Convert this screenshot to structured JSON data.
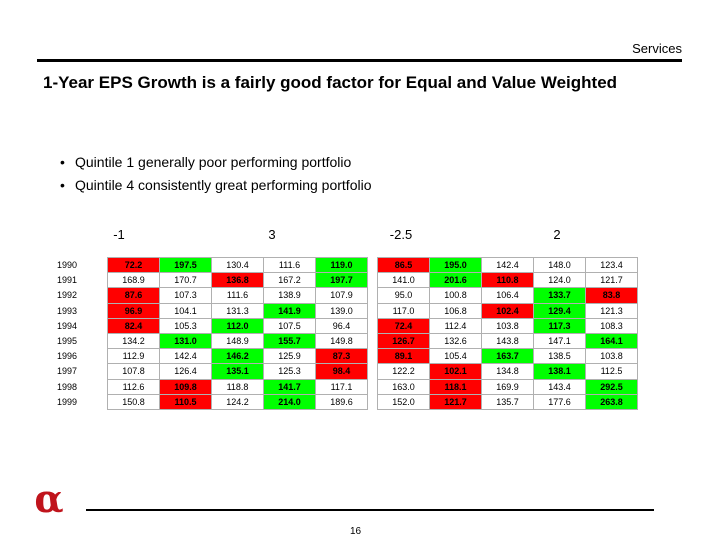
{
  "header": {
    "section": "Services"
  },
  "title": "1-Year EPS Growth is a fairly good factor for Equal and Value Weighted",
  "bullets": [
    "Quintile 1 generally poor performing portfolio",
    "Quintile 4 consistently great performing portfolio"
  ],
  "scores": [
    "-1",
    "3",
    "-2.5",
    "2"
  ],
  "years": [
    "1990",
    "1991",
    "1992",
    "1993",
    "1994",
    "1995",
    "1996",
    "1997",
    "1998",
    "1999"
  ],
  "left_table": [
    [
      [
        "72.2",
        "r"
      ],
      [
        "197.5",
        "g"
      ],
      [
        "130.4",
        ""
      ],
      [
        "111.6",
        ""
      ],
      [
        "119.0",
        "g"
      ]
    ],
    [
      [
        "168.9",
        ""
      ],
      [
        "170.7",
        ""
      ],
      [
        "136.8",
        "r"
      ],
      [
        "167.2",
        ""
      ],
      [
        "197.7",
        "g"
      ]
    ],
    [
      [
        "87.6",
        "r"
      ],
      [
        "107.3",
        ""
      ],
      [
        "111.6",
        ""
      ],
      [
        "138.9",
        ""
      ],
      [
        "107.9",
        ""
      ]
    ],
    [
      [
        "96.9",
        "r"
      ],
      [
        "104.1",
        ""
      ],
      [
        "131.3",
        ""
      ],
      [
        "141.9",
        "g"
      ],
      [
        "139.0",
        ""
      ]
    ],
    [
      [
        "82.4",
        "r"
      ],
      [
        "105.3",
        ""
      ],
      [
        "112.0",
        "g"
      ],
      [
        "107.5",
        ""
      ],
      [
        "96.4",
        ""
      ]
    ],
    [
      [
        "134.2",
        ""
      ],
      [
        "131.0",
        "g"
      ],
      [
        "148.9",
        ""
      ],
      [
        "155.7",
        "g"
      ],
      [
        "149.8",
        ""
      ]
    ],
    [
      [
        "112.9",
        ""
      ],
      [
        "142.4",
        ""
      ],
      [
        "146.2",
        "g"
      ],
      [
        "125.9",
        ""
      ],
      [
        "87.3",
        "r"
      ]
    ],
    [
      [
        "107.8",
        ""
      ],
      [
        "126.4",
        ""
      ],
      [
        "135.1",
        "g"
      ],
      [
        "125.3",
        ""
      ],
      [
        "98.4",
        "r"
      ]
    ],
    [
      [
        "112.6",
        ""
      ],
      [
        "109.8",
        "r"
      ],
      [
        "118.8",
        ""
      ],
      [
        "141.7",
        "g"
      ],
      [
        "117.1",
        ""
      ]
    ],
    [
      [
        "150.8",
        ""
      ],
      [
        "110.5",
        "r"
      ],
      [
        "124.2",
        ""
      ],
      [
        "214.0",
        "g"
      ],
      [
        "189.6",
        ""
      ]
    ]
  ],
  "right_table": [
    [
      [
        "86.5",
        "r"
      ],
      [
        "195.0",
        "g"
      ],
      [
        "142.4",
        ""
      ],
      [
        "148.0",
        ""
      ],
      [
        "123.4",
        ""
      ]
    ],
    [
      [
        "141.0",
        ""
      ],
      [
        "201.6",
        "g"
      ],
      [
        "110.8",
        "r"
      ],
      [
        "124.0",
        ""
      ],
      [
        "121.7",
        ""
      ]
    ],
    [
      [
        "95.0",
        ""
      ],
      [
        "100.8",
        ""
      ],
      [
        "106.4",
        ""
      ],
      [
        "133.7",
        "g"
      ],
      [
        "83.8",
        "r"
      ]
    ],
    [
      [
        "117.0",
        ""
      ],
      [
        "106.8",
        ""
      ],
      [
        "102.4",
        "r"
      ],
      [
        "129.4",
        "g"
      ],
      [
        "121.3",
        ""
      ]
    ],
    [
      [
        "72.4",
        "r"
      ],
      [
        "112.4",
        ""
      ],
      [
        "103.8",
        ""
      ],
      [
        "117.3",
        "g"
      ],
      [
        "108.3",
        ""
      ]
    ],
    [
      [
        "126.7",
        "r"
      ],
      [
        "132.6",
        ""
      ],
      [
        "143.8",
        ""
      ],
      [
        "147.1",
        ""
      ],
      [
        "164.1",
        "g"
      ]
    ],
    [
      [
        "89.1",
        "r"
      ],
      [
        "105.4",
        ""
      ],
      [
        "163.7",
        "g"
      ],
      [
        "138.5",
        ""
      ],
      [
        "103.8",
        ""
      ]
    ],
    [
      [
        "122.2",
        ""
      ],
      [
        "102.1",
        "r"
      ],
      [
        "134.8",
        ""
      ],
      [
        "138.1",
        "g"
      ],
      [
        "112.5",
        ""
      ]
    ],
    [
      [
        "163.0",
        ""
      ],
      [
        "118.1",
        "r"
      ],
      [
        "169.9",
        ""
      ],
      [
        "143.4",
        ""
      ],
      [
        "292.5",
        "g"
      ]
    ],
    [
      [
        "152.0",
        ""
      ],
      [
        "121.7",
        "r"
      ],
      [
        "135.7",
        ""
      ],
      [
        "177.6",
        ""
      ],
      [
        "263.8",
        "g"
      ]
    ]
  ],
  "logo": {
    "glyph": "α",
    "color": "#c0141c"
  },
  "footer": {
    "page": "16"
  }
}
